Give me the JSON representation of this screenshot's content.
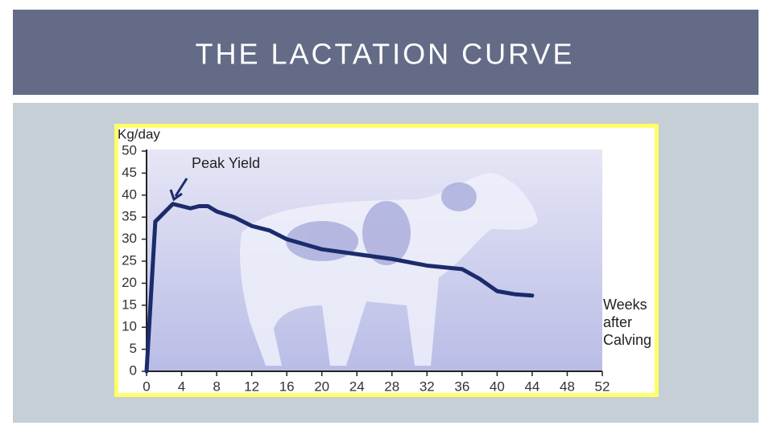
{
  "slide": {
    "title": "THE LACTATION CURVE"
  },
  "chart_data": {
    "type": "line",
    "y_label": "Kg/day",
    "x_label": "Weeks after Calving",
    "annotation": "Peak Yield",
    "x": [
      0,
      1,
      3,
      5,
      6,
      7,
      8,
      10,
      12,
      14,
      16,
      20,
      24,
      28,
      32,
      36,
      38,
      40,
      42,
      44
    ],
    "values": [
      0,
      34,
      38,
      37,
      37.5,
      37.5,
      36.3,
      35,
      33,
      32,
      30,
      27.7,
      26.6,
      25.5,
      24,
      23.2,
      21,
      18.2,
      17.5,
      17.2
    ],
    "color": "#1b2b6b",
    "xlim": [
      0,
      52
    ],
    "xticks": [
      0,
      4,
      8,
      12,
      16,
      20,
      24,
      28,
      32,
      36,
      40,
      44,
      48,
      52
    ],
    "ylim": [
      0,
      50
    ],
    "yticks": [
      0,
      5,
      10,
      15,
      20,
      25,
      30,
      35,
      40,
      45,
      50
    ]
  }
}
